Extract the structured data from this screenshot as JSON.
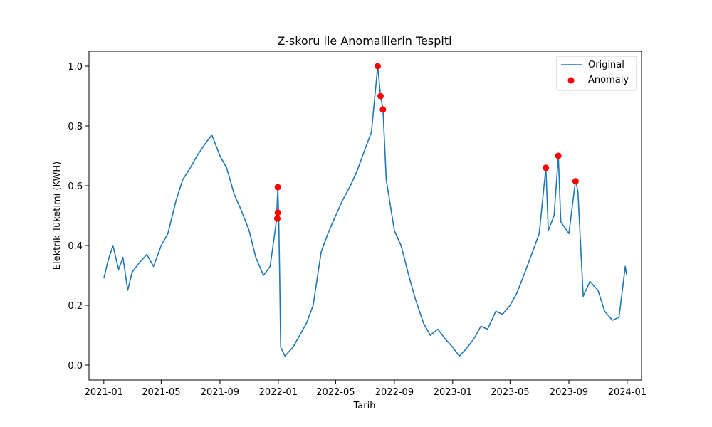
{
  "chart_data": {
    "type": "line",
    "title": "Z-skoru ile Anomalilerin Tespiti",
    "xlabel": "Tarih",
    "ylabel": "Elektrik Tüketimi (KWH)",
    "x_range": [
      "2020-12-01",
      "2024-01-31"
    ],
    "ylim": [
      -0.05,
      1.05
    ],
    "x_ticks": [
      "2021-01",
      "2021-05",
      "2021-09",
      "2022-01",
      "2022-05",
      "2022-09",
      "2023-01",
      "2023-05",
      "2023-09",
      "2024-01"
    ],
    "y_ticks": [
      "0.0",
      "0.2",
      "0.4",
      "0.6",
      "0.8",
      "1.0"
    ],
    "grid": false,
    "legend_position": "top-right",
    "colors": {
      "line": "#1f77b4",
      "anomaly": "#ff0000"
    },
    "series": [
      {
        "name": "Original",
        "kind": "line",
        "points": [
          [
            "2021-01-01",
            0.29
          ],
          [
            "2021-01-10",
            0.35
          ],
          [
            "2021-01-20",
            0.4
          ],
          [
            "2021-02-01",
            0.32
          ],
          [
            "2021-02-10",
            0.36
          ],
          [
            "2021-02-20",
            0.25
          ],
          [
            "2021-03-01",
            0.31
          ],
          [
            "2021-03-15",
            0.34
          ],
          [
            "2021-04-01",
            0.37
          ],
          [
            "2021-04-15",
            0.33
          ],
          [
            "2021-05-01",
            0.4
          ],
          [
            "2021-05-15",
            0.44
          ],
          [
            "2021-06-01",
            0.55
          ],
          [
            "2021-06-15",
            0.62
          ],
          [
            "2021-07-01",
            0.66
          ],
          [
            "2021-07-15",
            0.7
          ],
          [
            "2021-08-01",
            0.74
          ],
          [
            "2021-08-15",
            0.77
          ],
          [
            "2021-09-01",
            0.7
          ],
          [
            "2021-09-15",
            0.66
          ],
          [
            "2021-10-01",
            0.57
          ],
          [
            "2021-10-15",
            0.52
          ],
          [
            "2021-11-01",
            0.45
          ],
          [
            "2021-11-15",
            0.36
          ],
          [
            "2021-12-01",
            0.3
          ],
          [
            "2021-12-15",
            0.33
          ],
          [
            "2021-12-28",
            0.48
          ],
          [
            "2021-12-31",
            0.59
          ],
          [
            "2022-01-02",
            0.49
          ],
          [
            "2022-01-04",
            0.3
          ],
          [
            "2022-01-06",
            0.06
          ],
          [
            "2022-01-15",
            0.03
          ],
          [
            "2022-02-01",
            0.06
          ],
          [
            "2022-02-15",
            0.1
          ],
          [
            "2022-03-01",
            0.14
          ],
          [
            "2022-03-15",
            0.2
          ],
          [
            "2022-04-01",
            0.38
          ],
          [
            "2022-04-15",
            0.44
          ],
          [
            "2022-05-01",
            0.5
          ],
          [
            "2022-05-15",
            0.55
          ],
          [
            "2022-06-01",
            0.6
          ],
          [
            "2022-06-15",
            0.65
          ],
          [
            "2022-07-01",
            0.72
          ],
          [
            "2022-07-15",
            0.78
          ],
          [
            "2022-07-28",
            1.0
          ],
          [
            "2022-08-03",
            0.9
          ],
          [
            "2022-08-08",
            0.86
          ],
          [
            "2022-08-15",
            0.62
          ],
          [
            "2022-09-01",
            0.45
          ],
          [
            "2022-09-15",
            0.4
          ],
          [
            "2022-10-01",
            0.3
          ],
          [
            "2022-10-15",
            0.22
          ],
          [
            "2022-11-01",
            0.14
          ],
          [
            "2022-11-15",
            0.1
          ],
          [
            "2022-12-01",
            0.12
          ],
          [
            "2022-12-15",
            0.09
          ],
          [
            "2023-01-01",
            0.06
          ],
          [
            "2023-01-15",
            0.03
          ],
          [
            "2023-02-01",
            0.06
          ],
          [
            "2023-02-15",
            0.09
          ],
          [
            "2023-03-01",
            0.13
          ],
          [
            "2023-03-15",
            0.12
          ],
          [
            "2023-04-01",
            0.18
          ],
          [
            "2023-04-15",
            0.17
          ],
          [
            "2023-05-01",
            0.2
          ],
          [
            "2023-05-15",
            0.24
          ],
          [
            "2023-06-01",
            0.31
          ],
          [
            "2023-06-15",
            0.37
          ],
          [
            "2023-07-01",
            0.44
          ],
          [
            "2023-07-15",
            0.66
          ],
          [
            "2023-07-20",
            0.45
          ],
          [
            "2023-08-01",
            0.5
          ],
          [
            "2023-08-10",
            0.7
          ],
          [
            "2023-08-15",
            0.48
          ],
          [
            "2023-09-01",
            0.44
          ],
          [
            "2023-09-15",
            0.62
          ],
          [
            "2023-09-20",
            0.58
          ],
          [
            "2023-10-01",
            0.23
          ],
          [
            "2023-10-15",
            0.28
          ],
          [
            "2023-11-01",
            0.25
          ],
          [
            "2023-11-15",
            0.18
          ],
          [
            "2023-12-01",
            0.15
          ],
          [
            "2023-12-15",
            0.16
          ],
          [
            "2023-12-28",
            0.33
          ],
          [
            "2023-12-31",
            0.3
          ]
        ]
      },
      {
        "name": "Anomaly",
        "kind": "scatter",
        "points": [
          [
            "2021-12-30",
            0.49
          ],
          [
            "2021-12-31",
            0.51
          ],
          [
            "2021-12-31",
            0.595
          ],
          [
            "2022-07-28",
            1.0
          ],
          [
            "2022-08-03",
            0.9
          ],
          [
            "2022-08-08",
            0.855
          ],
          [
            "2023-07-15",
            0.66
          ],
          [
            "2023-08-10",
            0.7
          ],
          [
            "2023-09-15",
            0.615
          ]
        ]
      }
    ]
  }
}
